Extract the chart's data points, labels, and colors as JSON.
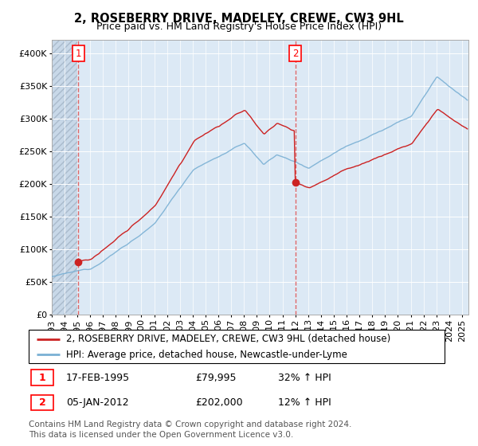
{
  "title": "2, ROSEBERRY DRIVE, MADELEY, CREWE, CW3 9HL",
  "subtitle": "Price paid vs. HM Land Registry's House Price Index (HPI)",
  "ylim": [
    0,
    420000
  ],
  "yticks": [
    0,
    50000,
    100000,
    150000,
    200000,
    250000,
    300000,
    350000,
    400000
  ],
  "ytick_labels": [
    "£0",
    "£50K",
    "£100K",
    "£150K",
    "£200K",
    "£250K",
    "£300K",
    "£350K",
    "£400K"
  ],
  "xlim_start": 1993.0,
  "xlim_end": 2025.5,
  "background_color": "#ffffff",
  "plot_bg_color": "#dce9f5",
  "grid_color": "#ffffff",
  "hatch_bg_color": "#c8d8e8",
  "sale1_year": 1995.083,
  "sale1_price": 79995,
  "sale1_label": "1",
  "sale2_year": 2012.0,
  "sale2_price": 202000,
  "sale2_label": "2",
  "red_line_color": "#cc2222",
  "blue_line_color": "#7ab0d4",
  "marker_color": "#cc2222",
  "sale_marker_size": 7,
  "dashed_line_color": "#dd4444",
  "legend_label1": "2, ROSEBERRY DRIVE, MADELEY, CREWE, CW3 9HL (detached house)",
  "legend_label2": "HPI: Average price, detached house, Newcastle-under-Lyme",
  "table_row1": [
    "1",
    "17-FEB-1995",
    "£79,995",
    "32% ↑ HPI"
  ],
  "table_row2": [
    "2",
    "05-JAN-2012",
    "£202,000",
    "12% ↑ HPI"
  ],
  "footer": "Contains HM Land Registry data © Crown copyright and database right 2024.\nThis data is licensed under the Open Government Licence v3.0.",
  "title_fontsize": 10.5,
  "subtitle_fontsize": 9,
  "tick_fontsize": 8,
  "legend_fontsize": 8.5,
  "table_fontsize": 9,
  "footer_fontsize": 7.5
}
